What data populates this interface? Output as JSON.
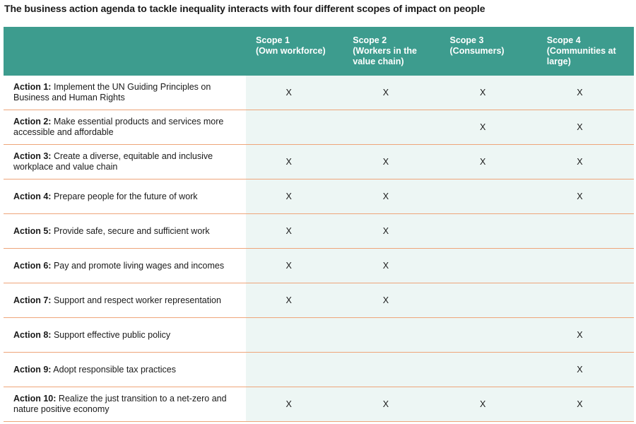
{
  "title": "The business action agenda to tackle inequality interacts with four different scopes of impact on people",
  "table": {
    "headers": [
      {
        "scope": "Scope 1",
        "detail": "(Own workforce)"
      },
      {
        "scope": "Scope 2",
        "detail": "(Workers in the value chain)"
      },
      {
        "scope": "Scope 3",
        "detail": "(Consumers)"
      },
      {
        "scope": "Scope 4",
        "detail": "(Communities at large)"
      }
    ],
    "rows": [
      {
        "action": "Action 1:",
        "text": "Implement the UN Guiding Principles on Business and Human Rights",
        "cells": [
          "X",
          "X",
          "X",
          "X"
        ]
      },
      {
        "action": "Action 2:",
        "text": "Make essential products and services more accessible and affordable",
        "cells": [
          null,
          null,
          "X",
          "X"
        ]
      },
      {
        "action": "Action 3:",
        "text": "Create a diverse, equitable and inclusive workplace and value chain",
        "cells": [
          "X",
          "X",
          "X",
          "X"
        ]
      },
      {
        "action": "Action 4:",
        "text": "Prepare people for the future of work",
        "cells": [
          "X",
          "X",
          null,
          "X"
        ]
      },
      {
        "action": "Action 5:",
        "text": "Provide safe, secure and sufficient work",
        "cells": [
          "X",
          "X",
          null,
          null
        ]
      },
      {
        "action": "Action 6:",
        "text": "Pay and promote living wages and incomes",
        "cells": [
          "X",
          "X",
          null,
          null
        ]
      },
      {
        "action": "Action 7:",
        "text": "Support and respect worker representation",
        "cells": [
          "X",
          "X",
          null,
          null
        ]
      },
      {
        "action": "Action 8:",
        "text": "Support effective public policy",
        "cells": [
          null,
          null,
          null,
          "X"
        ]
      },
      {
        "action": "Action 9:",
        "text": "Adopt responsible tax practices",
        "cells": [
          null,
          null,
          null,
          "X"
        ]
      },
      {
        "action": "Action 10:",
        "text": "Realize the just transition to a net-zero and nature positive economy",
        "cells": [
          "X",
          "X",
          "X",
          "X"
        ]
      }
    ]
  }
}
